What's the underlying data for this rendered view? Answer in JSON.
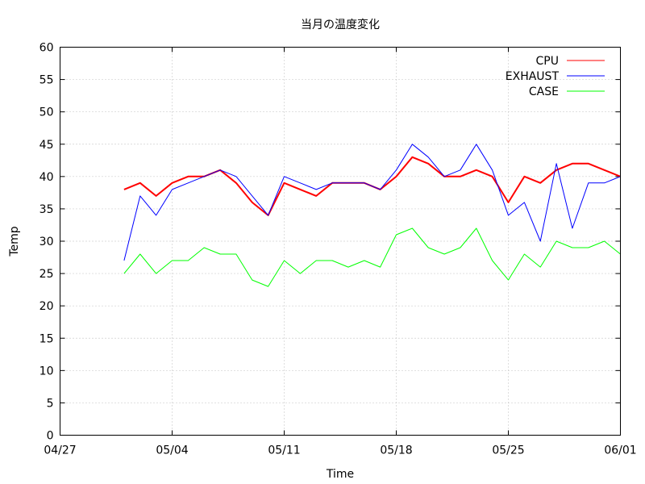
{
  "chart_data": {
    "type": "line",
    "title": "当月の温度変化",
    "xlabel": "Time",
    "ylabel": "Temp",
    "ylim": [
      0,
      60
    ],
    "yticks": [
      0,
      5,
      10,
      15,
      20,
      25,
      30,
      35,
      40,
      45,
      50,
      55,
      60
    ],
    "xlim": [
      "04/27",
      "06/01"
    ],
    "xticks": [
      "04/27",
      "05/04",
      "05/11",
      "05/18",
      "05/25",
      "06/01"
    ],
    "grid": true,
    "legend_position": "top-right",
    "series": [
      {
        "name": "CPU",
        "color": "#ff0000",
        "x": [
          "05/01",
          "05/02",
          "05/03",
          "05/04",
          "05/05",
          "05/06",
          "05/07",
          "05/08",
          "05/09",
          "05/10",
          "05/11",
          "05/12",
          "05/13",
          "05/14",
          "05/15",
          "05/16",
          "05/17",
          "05/18",
          "05/19",
          "05/20",
          "05/21",
          "05/22",
          "05/23",
          "05/24",
          "05/25",
          "05/26",
          "05/27",
          "05/28",
          "05/29",
          "05/30",
          "05/31",
          "06/01"
        ],
        "y": [
          38,
          39,
          37,
          39,
          40,
          40,
          41,
          39,
          36,
          34,
          39,
          38,
          37,
          39,
          39,
          39,
          38,
          40,
          43,
          42,
          40,
          40,
          41,
          40,
          36,
          40,
          39,
          41,
          42,
          42,
          41,
          40
        ]
      },
      {
        "name": "EXHAUST",
        "color": "#0000ff",
        "x": [
          "05/01",
          "05/02",
          "05/03",
          "05/04",
          "05/05",
          "05/06",
          "05/07",
          "05/08",
          "05/09",
          "05/10",
          "05/11",
          "05/12",
          "05/13",
          "05/14",
          "05/15",
          "05/16",
          "05/17",
          "05/18",
          "05/19",
          "05/20",
          "05/21",
          "05/22",
          "05/23",
          "05/24",
          "05/25",
          "05/26",
          "05/27",
          "05/28",
          "05/29",
          "05/30",
          "05/31",
          "06/01"
        ],
        "y": [
          27,
          37,
          34,
          38,
          39,
          40,
          41,
          40,
          37,
          34,
          40,
          39,
          38,
          39,
          39,
          39,
          38,
          41,
          45,
          43,
          40,
          41,
          45,
          41,
          34,
          36,
          30,
          42,
          32,
          39,
          39,
          40
        ]
      },
      {
        "name": "CASE",
        "color": "#00ff00",
        "x": [
          "05/01",
          "05/02",
          "05/03",
          "05/04",
          "05/05",
          "05/06",
          "05/07",
          "05/08",
          "05/09",
          "05/10",
          "05/11",
          "05/12",
          "05/13",
          "05/14",
          "05/15",
          "05/16",
          "05/17",
          "05/18",
          "05/19",
          "05/20",
          "05/21",
          "05/22",
          "05/23",
          "05/24",
          "05/25",
          "05/26",
          "05/27",
          "05/28",
          "05/29",
          "05/30",
          "05/31",
          "06/01"
        ],
        "y": [
          25,
          28,
          25,
          27,
          27,
          29,
          28,
          28,
          24,
          23,
          27,
          25,
          27,
          27,
          26,
          27,
          26,
          31,
          32,
          29,
          28,
          29,
          32,
          27,
          24,
          28,
          26,
          30,
          29,
          29,
          30,
          28
        ]
      }
    ]
  }
}
